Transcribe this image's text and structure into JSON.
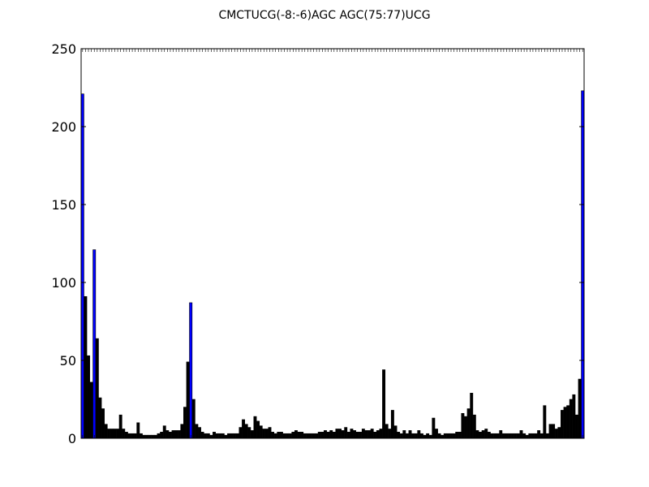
{
  "chart_data": {
    "type": "bar",
    "title": "CMCTUCG(-8:-6)AGC AGC(75:77)UCG",
    "xlabel": "",
    "ylabel": "",
    "ylim": [
      0,
      250
    ],
    "yticks": [
      0,
      50,
      100,
      150,
      200,
      250
    ],
    "grid": false,
    "legend": "none",
    "colors": {
      "highlight": "#0000ff",
      "default": "#000000",
      "edge": "#000000"
    },
    "xtick_note": "tick labels are illegible (overlapping rotated text); one unlabeled tick per bar",
    "values": [
      221,
      91,
      53,
      36,
      121,
      64,
      26,
      19,
      9,
      6,
      6,
      6,
      6,
      15,
      6,
      4,
      3,
      3,
      3,
      10,
      3,
      2,
      2,
      2,
      2,
      2,
      3,
      4,
      8,
      5,
      4,
      5,
      5,
      5,
      9,
      20,
      49,
      87,
      25,
      9,
      7,
      4,
      3,
      3,
      2,
      4,
      3,
      3,
      3,
      2,
      3,
      3,
      3,
      3,
      7,
      12,
      9,
      7,
      5,
      14,
      11,
      8,
      6,
      6,
      7,
      4,
      3,
      4,
      4,
      3,
      3,
      3,
      4,
      5,
      4,
      4,
      3,
      3,
      3,
      3,
      3,
      4,
      4,
      5,
      4,
      5,
      4,
      6,
      6,
      5,
      7,
      4,
      6,
      5,
      4,
      4,
      6,
      5,
      5,
      6,
      4,
      5,
      6,
      44,
      9,
      6,
      18,
      8,
      4,
      3,
      5,
      3,
      5,
      3,
      3,
      5,
      3,
      2,
      3,
      2,
      13,
      6,
      3,
      2,
      3,
      3,
      3,
      3,
      4,
      4,
      16,
      14,
      19,
      29,
      15,
      5,
      4,
      5,
      6,
      4,
      3,
      3,
      3,
      5,
      3,
      3,
      3,
      3,
      3,
      3,
      5,
      3,
      2,
      3,
      3,
      3,
      5,
      3,
      21,
      3,
      9,
      9,
      6,
      7,
      18,
      20,
      21,
      25,
      28,
      15,
      38,
      223
    ],
    "highlight_indices": [
      0,
      4,
      37,
      171
    ]
  }
}
